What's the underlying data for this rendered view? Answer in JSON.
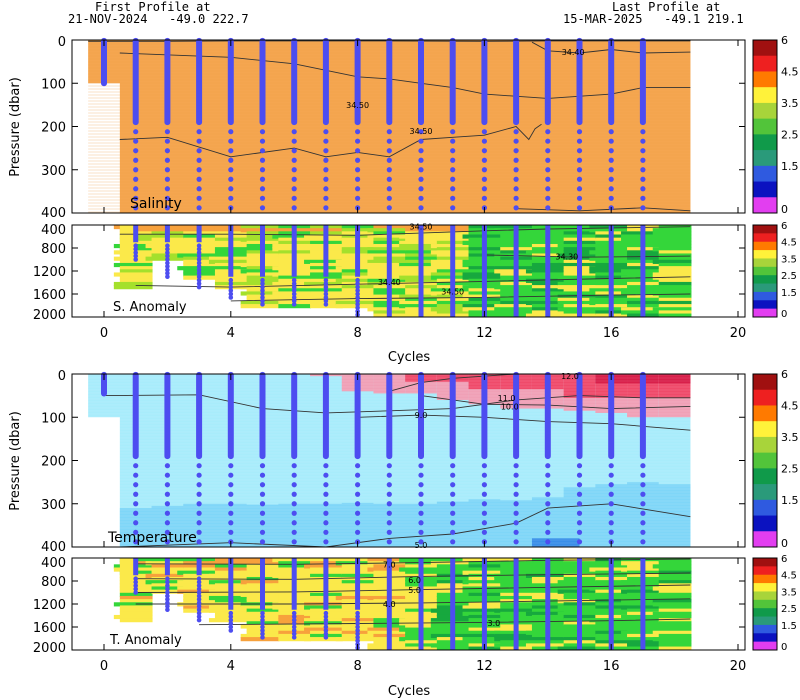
{
  "header": {
    "first_title": "First Profile at",
    "first_info": "21-NOV-2024   -49.0 222.7",
    "last_title": "Last Profile at",
    "last_info": "15-MAR-2025   -49.1 219.1"
  },
  "colors": {
    "profile_line": "#4d4df0",
    "salinity_fill": "#f5a650",
    "temp_light": "#a8ecfb",
    "temp_mid": "#7fd6f8",
    "temp_deep": "#5ab8f0",
    "temp_pink": "#f0a0b6",
    "temp_red": "#ef3b5d",
    "anom_orange": "#f7a13c",
    "anom_yellow": "#fbe94a",
    "anom_green": "#34d63a",
    "anom_lime": "#a4e02c",
    "anom_darkgreen": "#17a83e"
  },
  "colorbar": {
    "tick_labels": [
      "6",
      "4.5",
      "3.5",
      "2.5",
      "1.5",
      "0"
    ],
    "colors": [
      "#a01010",
      "#ee2020",
      "#ff7a00",
      "#fff23a",
      "#a8d43a",
      "#52c43a",
      "#109a4a",
      "#2a9a7a",
      "#2f5ae0",
      "#0b12c0",
      "#e23ef0"
    ]
  },
  "chart_data": [
    {
      "type": "heatmap",
      "panel": "salinity",
      "ylabel": "Pressure (dbar)",
      "label": "Salinity",
      "xlim": [
        -1.5,
        20
      ],
      "ylim": [
        400,
        0
      ],
      "yticks": [
        0,
        100,
        200,
        300,
        400
      ],
      "profiles_x": [
        0,
        1,
        2,
        3,
        4,
        5,
        6,
        7,
        8,
        9,
        10,
        11,
        12,
        13,
        14,
        15,
        16,
        17
      ],
      "contour_labels": [
        "34.40",
        "34.50",
        "34.50"
      ]
    },
    {
      "type": "heatmap",
      "panel": "salinity_anomaly",
      "label": "S. Anomaly",
      "xlabel": "Cycles",
      "xticks": [
        0,
        4,
        8,
        12,
        16,
        20
      ],
      "ylim": [
        2000,
        400
      ],
      "yticks": [
        400,
        800,
        1200,
        1600,
        2000
      ],
      "contour_labels": [
        "34.50",
        "34.30",
        "34.40",
        "34.50"
      ]
    },
    {
      "type": "heatmap",
      "panel": "temperature",
      "ylabel": "Pressure (dbar)",
      "label": "Temperature",
      "xlim": [
        -1.5,
        20
      ],
      "ylim": [
        400,
        0
      ],
      "yticks": [
        0,
        100,
        200,
        300,
        400
      ],
      "contour_labels": [
        "12.0",
        "11.0",
        "10.0",
        "9.0",
        "5.0"
      ]
    },
    {
      "type": "heatmap",
      "panel": "temperature_anomaly",
      "label": "T. Anomaly",
      "xlabel": "Cycles",
      "xticks": [
        0,
        4,
        8,
        12,
        16,
        20
      ],
      "ylim": [
        2000,
        400
      ],
      "yticks": [
        400,
        800,
        1200,
        1600,
        2000
      ],
      "contour_labels": [
        "7.0",
        "6.0",
        "5.0",
        "4.0",
        "3.0"
      ]
    }
  ]
}
